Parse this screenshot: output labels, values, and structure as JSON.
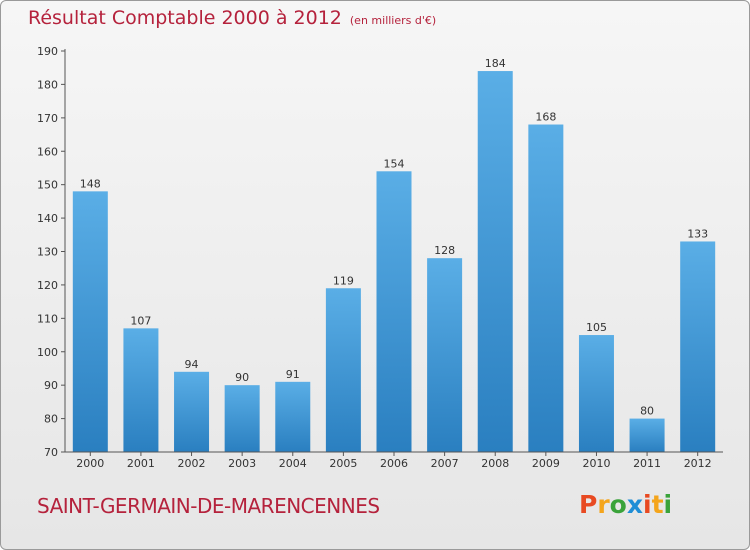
{
  "header": {
    "title": "Résultat Comptable 2000 à 2012",
    "subtitle": "(en milliers d'€)"
  },
  "footer": {
    "commune": "SAINT-GERMAIN-DE-MARENCENNES",
    "logo": [
      "P",
      "r",
      "o",
      "x",
      "i",
      "t",
      "i"
    ]
  },
  "colors": {
    "title": "#b5223c",
    "bar_top": "#5aaee6",
    "bar_bottom": "#2a7fc0",
    "logo": [
      "#e84a22",
      "#f4a51c",
      "#3aa33a",
      "#1f8ed6",
      "#e84a22",
      "#f4a51c",
      "#3aa33a"
    ]
  },
  "chart_data": {
    "type": "bar",
    "title": "Résultat Comptable 2000 à 2012",
    "ylabel": "en milliers d'€",
    "xlabel": "",
    "categories": [
      "2000",
      "2001",
      "2002",
      "2003",
      "2004",
      "2005",
      "2006",
      "2007",
      "2008",
      "2009",
      "2010",
      "2011",
      "2012"
    ],
    "values": [
      148,
      107,
      94,
      90,
      91,
      119,
      154,
      128,
      184,
      168,
      105,
      80,
      133
    ],
    "ylim": [
      70,
      190
    ],
    "yticks": [
      70,
      80,
      90,
      100,
      110,
      120,
      130,
      140,
      150,
      160,
      170,
      180,
      190
    ],
    "grid": false,
    "legend": "none"
  }
}
